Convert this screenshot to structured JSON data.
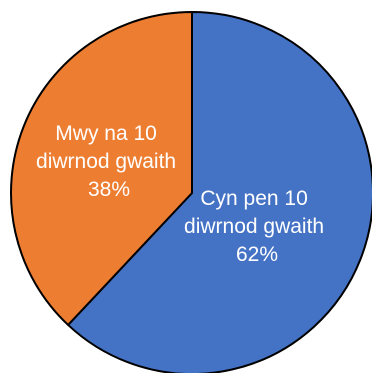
{
  "chart_data": {
    "type": "pie",
    "slices": [
      {
        "lines": [
          "Cyn pen 10",
          "diwrnod gwaith",
          "62%"
        ],
        "value": 62,
        "color": "#4472C4"
      },
      {
        "lines": [
          "Mwy na 10",
          "diwrnod gwaith",
          "38%"
        ],
        "value": 38,
        "color": "#ED7D31"
      }
    ],
    "start_angle": "12 o'clock",
    "direction": "clockwise",
    "legend": "none",
    "title": ""
  }
}
